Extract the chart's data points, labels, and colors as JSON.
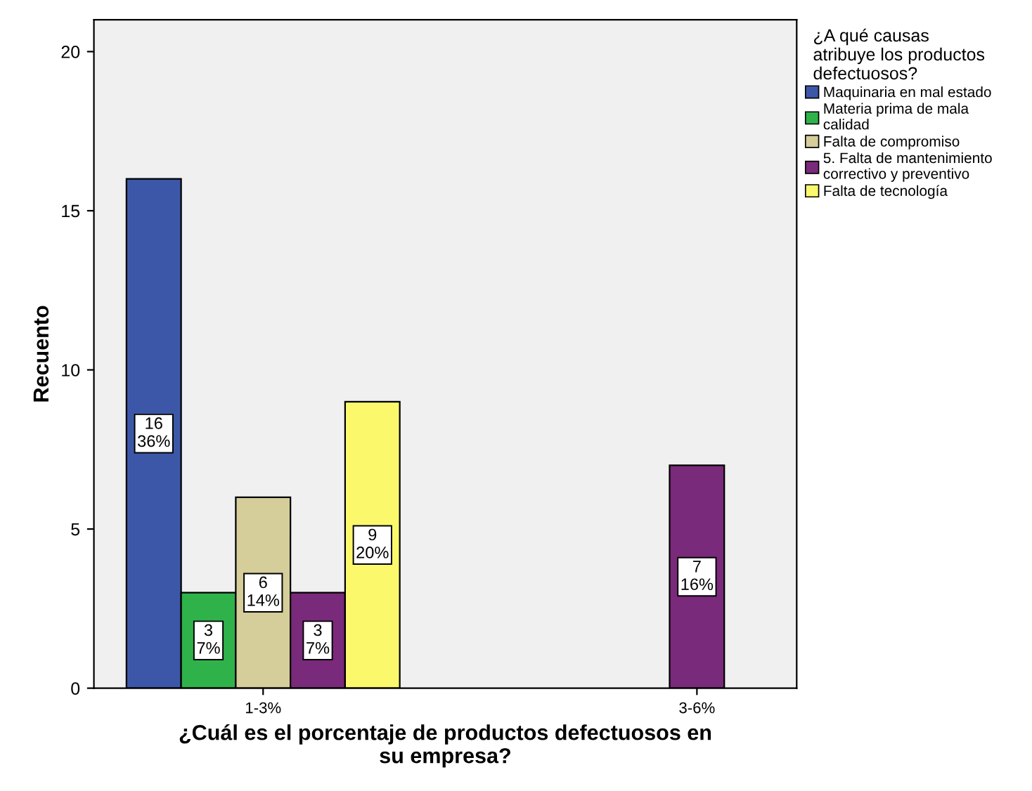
{
  "chart_data": {
    "type": "bar",
    "xlabel": "¿Cuál es el porcentaje de productos defectuosos en\nsu empresa?",
    "ylabel": "Recuento",
    "legend_title": "¿A qué causas\natribuye los productos\ndefectuosos?",
    "categories": [
      "1-3%",
      "3-6%"
    ],
    "series": [
      {
        "name": "Maquinaria en mal estado",
        "color": "#3d57a8",
        "values": [
          16,
          null
        ],
        "value_labels": [
          "16\n36%",
          null
        ]
      },
      {
        "name": "Materia prima de mala\ncalidad",
        "color": "#2fb24a",
        "values": [
          3,
          null
        ],
        "value_labels": [
          "3\n7%",
          null
        ]
      },
      {
        "name": "Falta de compromiso",
        "color": "#d5cd9a",
        "values": [
          6,
          null
        ],
        "value_labels": [
          "6\n14%",
          null
        ]
      },
      {
        "name": "5. Falta de mantenimiento\ncorrectivo y preventivo",
        "color": "#7a2a7a",
        "values": [
          3,
          7
        ],
        "value_labels": [
          "3\n7%",
          "7\n16%"
        ]
      },
      {
        "name": "Falta de tecnología",
        "color": "#fbf86c",
        "values": [
          9,
          null
        ],
        "value_labels": [
          "9\n20%",
          null
        ]
      }
    ],
    "ylim": [
      0,
      21
    ],
    "yticks": [
      0,
      5,
      10,
      15,
      20
    ],
    "grid": false,
    "legend": "top right"
  }
}
